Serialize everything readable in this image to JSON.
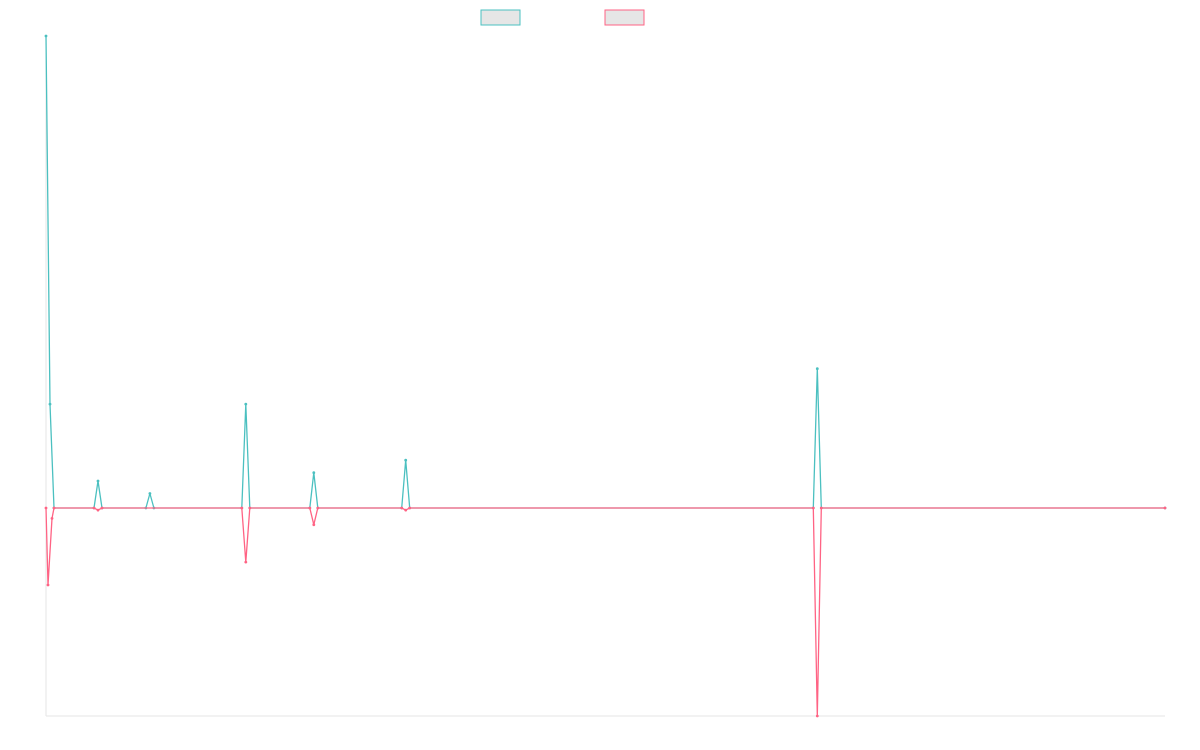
{
  "chart_data": {
    "type": "line",
    "title": "",
    "xlabel": "",
    "ylabel": "",
    "grid": false,
    "legend_position": "top-center",
    "x_range": [
      0,
      280
    ],
    "ylim": [
      -1.0,
      2.27
    ],
    "series": [
      {
        "color": "#4bc0c0",
        "fill": "#e6e6e6",
        "points": [
          [
            0,
            2.27
          ],
          [
            1,
            0.5
          ],
          [
            2,
            0
          ],
          [
            12,
            0
          ],
          [
            13,
            0.13
          ],
          [
            14,
            0
          ],
          [
            25,
            0
          ],
          [
            26,
            0.07
          ],
          [
            27,
            0
          ],
          [
            49,
            0
          ],
          [
            50,
            0.5
          ],
          [
            51,
            0
          ],
          [
            66,
            0
          ],
          [
            67,
            0.17
          ],
          [
            68,
            0
          ],
          [
            89,
            0
          ],
          [
            90,
            0.23
          ],
          [
            91,
            0
          ],
          [
            192,
            0
          ],
          [
            193,
            0.67
          ],
          [
            194,
            0
          ],
          [
            280,
            0
          ]
        ]
      },
      {
        "color": "#ff6384",
        "fill": "#e6e6e6",
        "points": [
          [
            0,
            0
          ],
          [
            0.5,
            -0.37
          ],
          [
            1.5,
            -0.05
          ],
          [
            2,
            0
          ],
          [
            12,
            0
          ],
          [
            13,
            -0.01
          ],
          [
            14,
            0
          ],
          [
            49,
            0
          ],
          [
            50,
            -0.26
          ],
          [
            51,
            0
          ],
          [
            66,
            0
          ],
          [
            67,
            -0.08
          ],
          [
            68,
            0
          ],
          [
            89,
            0
          ],
          [
            90,
            -0.01
          ],
          [
            91,
            0
          ],
          [
            192,
            0
          ],
          [
            193,
            -1.0
          ],
          [
            194,
            0
          ],
          [
            280,
            0
          ]
        ]
      }
    ]
  }
}
